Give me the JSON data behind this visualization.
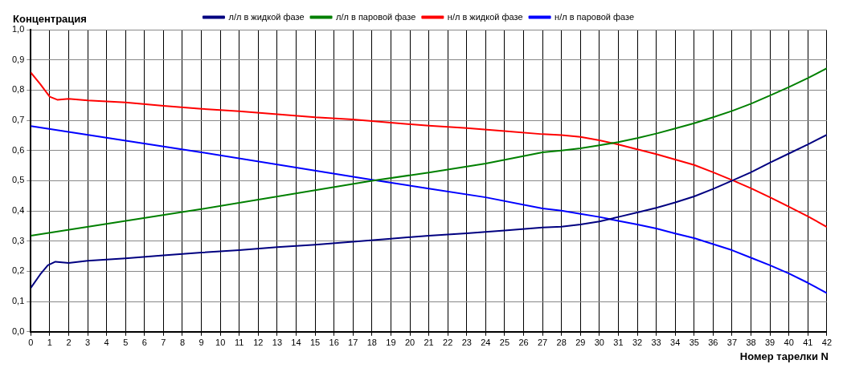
{
  "chart_data": {
    "type": "line",
    "ylabel": "Концентрация",
    "xlabel": "Номер тарелки N",
    "xlim": [
      0,
      42
    ],
    "xticks": [
      0,
      1,
      2,
      3,
      4,
      5,
      6,
      7,
      8,
      9,
      10,
      11,
      12,
      13,
      14,
      15,
      16,
      17,
      18,
      19,
      20,
      21,
      22,
      23,
      24,
      25,
      26,
      27,
      28,
      29,
      30,
      31,
      32,
      33,
      34,
      35,
      36,
      37,
      38,
      39,
      40,
      41,
      42
    ],
    "ylim": [
      0,
      1
    ],
    "yticks": [
      {
        "value": 0,
        "label": "0,0"
      },
      {
        "value": 0.1,
        "label": "0,1"
      },
      {
        "value": 0.2,
        "label": "0,2"
      },
      {
        "value": 0.3,
        "label": "0,3"
      },
      {
        "value": 0.4,
        "label": "0,4"
      },
      {
        "value": 0.5,
        "label": "0,5"
      },
      {
        "value": 0.6,
        "label": "0,6"
      },
      {
        "value": 0.7,
        "label": "0,7"
      },
      {
        "value": 0.8,
        "label": "0,8"
      },
      {
        "value": 0.9,
        "label": "0,9"
      },
      {
        "value": 1,
        "label": "1,0"
      }
    ],
    "grid": true,
    "legend": "top",
    "marker": "none",
    "line_style": "solid",
    "series": [
      {
        "name": "л/л в жидкой фазе",
        "color": "#000080",
        "x": [
          0,
          0.5,
          0.9,
          1.3,
          2,
          3,
          5,
          7,
          9,
          11,
          13,
          15,
          17,
          19,
          21,
          23,
          25,
          27,
          28,
          29,
          30,
          31,
          32,
          33,
          34,
          35,
          36,
          37,
          38,
          39,
          40,
          41,
          42
        ],
        "values": [
          0.145,
          0.19,
          0.22,
          0.232,
          0.228,
          0.235,
          0.243,
          0.253,
          0.262,
          0.27,
          0.28,
          0.288,
          0.298,
          0.308,
          0.318,
          0.326,
          0.335,
          0.345,
          0.348,
          0.355,
          0.365,
          0.38,
          0.395,
          0.41,
          0.428,
          0.448,
          0.473,
          0.5,
          0.528,
          0.56,
          0.59,
          0.62,
          0.652
        ]
      },
      {
        "name": "л/л в паровой фазе",
        "color": "#008000",
        "x": [
          0,
          9,
          18,
          21,
          24,
          27,
          28,
          29,
          30,
          31,
          32,
          33,
          34,
          35,
          36,
          37,
          38,
          39,
          40,
          41,
          42
        ],
        "values": [
          0.318,
          0.406,
          0.5,
          0.527,
          0.557,
          0.594,
          0.6,
          0.607,
          0.617,
          0.628,
          0.641,
          0.656,
          0.673,
          0.69,
          0.71,
          0.731,
          0.755,
          0.782,
          0.81,
          0.84,
          0.872
        ]
      },
      {
        "name": "н/л в жидкой фазе",
        "color": "#ff0000",
        "x": [
          0,
          0.5,
          1,
          1.4,
          2,
          3,
          5,
          7,
          9,
          11,
          13,
          15,
          17,
          19,
          21,
          23,
          25,
          27,
          28,
          29,
          30,
          31,
          32,
          33,
          34,
          35,
          36,
          37,
          38,
          39,
          40,
          41,
          42
        ],
        "values": [
          0.858,
          0.82,
          0.778,
          0.768,
          0.771,
          0.766,
          0.759,
          0.748,
          0.738,
          0.73,
          0.72,
          0.71,
          0.703,
          0.692,
          0.682,
          0.674,
          0.664,
          0.654,
          0.651,
          0.645,
          0.634,
          0.62,
          0.604,
          0.588,
          0.57,
          0.552,
          0.528,
          0.502,
          0.475,
          0.445,
          0.414,
          0.382,
          0.347
        ]
      },
      {
        "name": "н/л в паровой фазе",
        "color": "#0000ff",
        "x": [
          0,
          9,
          18,
          21,
          24,
          27,
          28,
          29,
          30,
          31,
          32,
          33,
          34,
          35,
          36,
          37,
          38,
          39,
          40,
          41,
          42
        ],
        "values": [
          0.681,
          0.594,
          0.503,
          0.474,
          0.445,
          0.408,
          0.401,
          0.39,
          0.38,
          0.367,
          0.355,
          0.342,
          0.325,
          0.31,
          0.29,
          0.27,
          0.245,
          0.22,
          0.193,
          0.162,
          0.128
        ]
      }
    ]
  }
}
